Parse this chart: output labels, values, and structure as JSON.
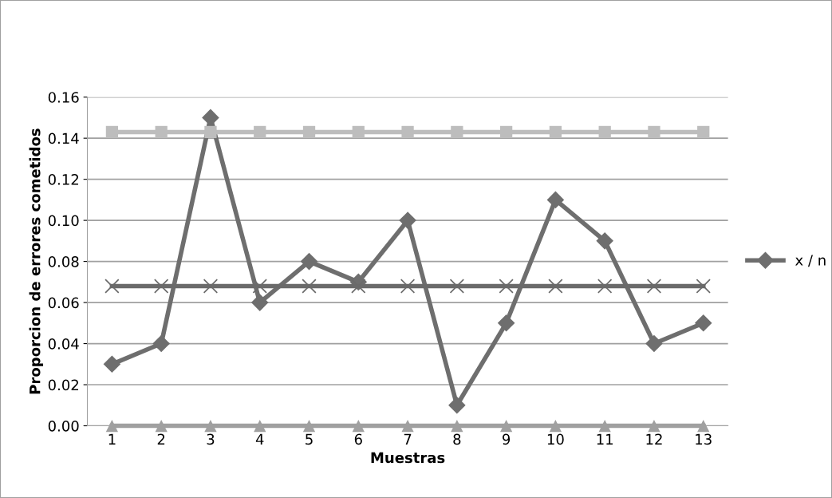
{
  "chart_data": {
    "type": "line",
    "xlabel": "Muestras",
    "ylabel": "Proporcion de errores cometidos",
    "categories": [
      "1",
      "2",
      "3",
      "4",
      "5",
      "6",
      "7",
      "8",
      "9",
      "10",
      "11",
      "12",
      "13"
    ],
    "series": [
      {
        "name": "x / n",
        "color": "#6e6e6e",
        "marker": "diamond",
        "values": [
          0.03,
          0.04,
          0.15,
          0.06,
          0.08,
          0.07,
          0.1,
          0.01,
          0.05,
          0.11,
          0.09,
          0.04,
          0.05
        ]
      },
      {
        "color": "#bdbdbd",
        "marker": "square",
        "values": [
          0.143,
          0.143,
          0.143,
          0.143,
          0.143,
          0.143,
          0.143,
          0.143,
          0.143,
          0.143,
          0.143,
          0.143,
          0.143
        ]
      },
      {
        "color": "#6a6a6a",
        "marker": "cross",
        "values": [
          0.068,
          0.068,
          0.068,
          0.068,
          0.068,
          0.068,
          0.068,
          0.068,
          0.068,
          0.068,
          0.068,
          0.068,
          0.068
        ]
      },
      {
        "color": "#a0a0a0",
        "marker": "triangle",
        "values": [
          0,
          0,
          0,
          0,
          0,
          0,
          0,
          0,
          0,
          0,
          0,
          0,
          0
        ]
      }
    ],
    "ylim": [
      0,
      0.16
    ],
    "yticks": [
      {
        "value": 0,
        "label": "0.00"
      },
      {
        "value": 0.02,
        "label": "0.02"
      },
      {
        "value": 0.04,
        "label": "0.04"
      },
      {
        "value": 0.06,
        "label": "0.06"
      },
      {
        "value": 0.08,
        "label": "0.08"
      },
      {
        "value": 0.1,
        "label": "0.10"
      },
      {
        "value": 0.12,
        "label": "0.12"
      },
      {
        "value": 0.14,
        "label": "0.14"
      },
      {
        "value": 0.16,
        "label": "0.16"
      }
    ],
    "grid": "y",
    "legend": "right",
    "line_style": "solid"
  }
}
